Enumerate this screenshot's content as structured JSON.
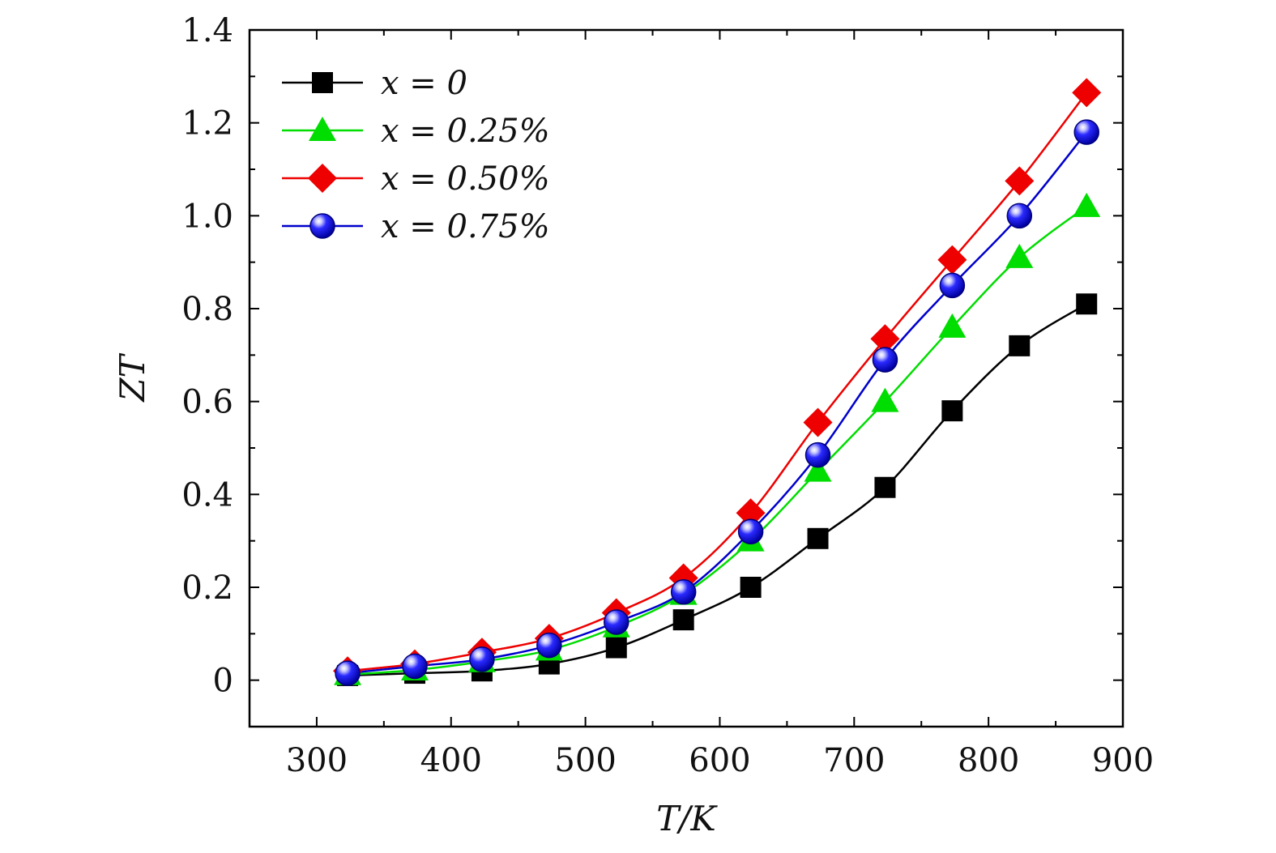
{
  "chart_data": {
    "type": "line",
    "title": "",
    "xlabel": "T/K",
    "ylabel": "ZT",
    "xlim": [
      250,
      900
    ],
    "ylim": [
      -0.1,
      1.4
    ],
    "xticks": [
      300,
      400,
      500,
      600,
      700,
      800,
      900
    ],
    "xtick_labels": [
      "300",
      "400",
      "500",
      "600",
      "700",
      "800",
      "900"
    ],
    "yticks": [
      0,
      0.2,
      0.4,
      0.6,
      0.8,
      1.0,
      1.2,
      1.4
    ],
    "ytick_labels": [
      "0",
      "0.2",
      "0.4",
      "0.6",
      "0.8",
      "1.0",
      "1.2",
      "1.4"
    ],
    "grid": false,
    "legend_position": "top-left",
    "x": [
      323,
      373,
      423,
      473,
      523,
      573,
      623,
      673,
      723,
      773,
      823,
      873
    ],
    "series": [
      {
        "name": "x = 0",
        "marker": "square",
        "color": "#000000",
        "values": [
          0.01,
          0.015,
          0.02,
          0.035,
          0.07,
          0.13,
          0.2,
          0.305,
          0.415,
          0.58,
          0.72,
          0.81
        ]
      },
      {
        "name": "x = 0.25%",
        "marker": "triangle",
        "color": "#00dd00",
        "values": [
          0.012,
          0.022,
          0.04,
          0.065,
          0.115,
          0.185,
          0.3,
          0.45,
          0.6,
          0.76,
          0.91,
          1.02
        ]
      },
      {
        "name": "x = 0.50%",
        "marker": "diamond",
        "color": "#ee0000",
        "values": [
          0.02,
          0.035,
          0.06,
          0.09,
          0.145,
          0.22,
          0.36,
          0.555,
          0.735,
          0.905,
          1.075,
          1.265
        ]
      },
      {
        "name": "x = 0.75%",
        "marker": "circle",
        "color": "#0000cc",
        "values": [
          0.015,
          0.03,
          0.045,
          0.075,
          0.125,
          0.19,
          0.32,
          0.485,
          0.69,
          0.85,
          1.0,
          1.18
        ]
      }
    ]
  }
}
